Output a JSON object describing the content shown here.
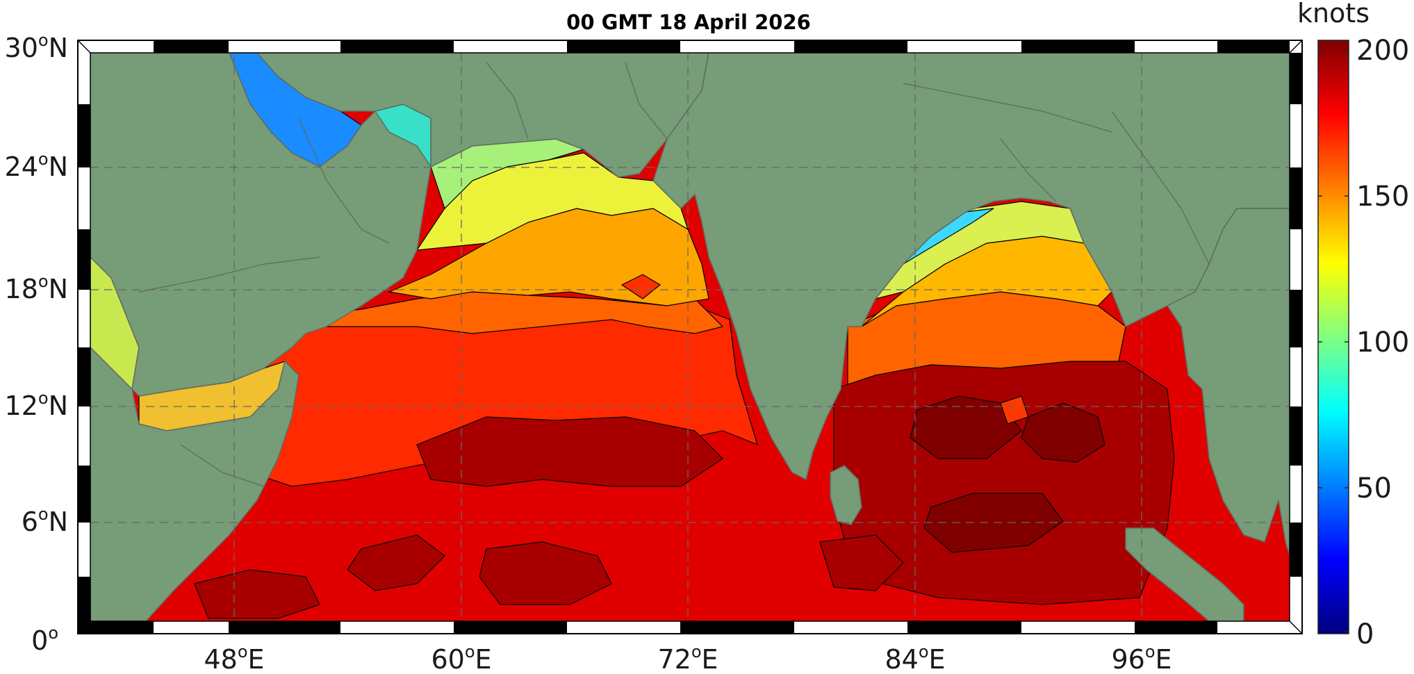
{
  "title": "00 GMT 18 April 2026",
  "colorbar": {
    "unit": "knots",
    "min": 0,
    "max": 200,
    "ticks": [
      "0",
      "50",
      "100",
      "150",
      "200"
    ],
    "colormap": [
      "#000080",
      "#0000ff",
      "#0080ff",
      "#00ffff",
      "#80ff80",
      "#ffff00",
      "#ff8000",
      "#ff0000",
      "#800000"
    ]
  },
  "axes": {
    "lon_ticks": [
      {
        "deg": "48",
        "suffix": "E"
      },
      {
        "deg": "60",
        "suffix": "E"
      },
      {
        "deg": "72",
        "suffix": "E"
      },
      {
        "deg": "84",
        "suffix": "E"
      },
      {
        "deg": "96",
        "suffix": "E"
      }
    ],
    "lat_ticks": [
      {
        "deg": "30",
        "suffix": "N"
      },
      {
        "deg": "24",
        "suffix": "N"
      },
      {
        "deg": "18",
        "suffix": "N"
      },
      {
        "deg": "12",
        "suffix": "N"
      },
      {
        "deg": "6",
        "suffix": "N"
      },
      {
        "deg": "0",
        "suffix": ""
      }
    ],
    "degree_symbol": "o",
    "lon_range": [
      40,
      105
    ],
    "lat_range": [
      0,
      30
    ],
    "grid": "dashed"
  },
  "colors": {
    "land": "#769c78",
    "border": "#6a6a6a",
    "frame_dark": "#000000",
    "frame_light": "#ffffff"
  }
}
